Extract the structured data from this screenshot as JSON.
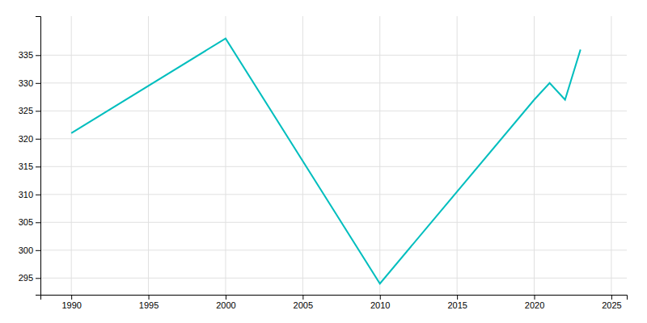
{
  "chart_data": {
    "type": "line",
    "x": [
      1990,
      2000,
      2010,
      2020,
      2021,
      2022,
      2023
    ],
    "values": [
      321,
      338,
      294,
      327,
      330,
      327,
      336
    ],
    "color": "#00BEBE",
    "xlim": [
      1988,
      2026
    ],
    "ylim": [
      292,
      342
    ],
    "xticks": [
      1990,
      1995,
      2000,
      2005,
      2010,
      2015,
      2020,
      2025
    ],
    "yticks": [
      295,
      300,
      305,
      310,
      315,
      320,
      325,
      330,
      335
    ],
    "grid": true
  }
}
